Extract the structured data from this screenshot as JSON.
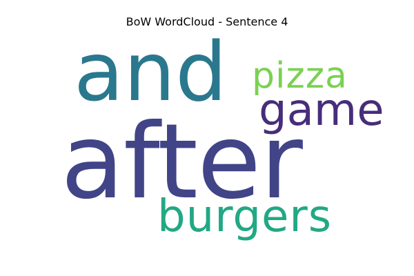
{
  "figure": {
    "title": "BoW WordCloud - Sentence 4"
  },
  "words": [
    {
      "text": "and",
      "color": "#2a788e"
    },
    {
      "text": "pizza",
      "color": "#7ad151"
    },
    {
      "text": "game",
      "color": "#472d7b"
    },
    {
      "text": "after",
      "color": "#414487"
    },
    {
      "text": "burgers",
      "color": "#22a884"
    }
  ]
}
